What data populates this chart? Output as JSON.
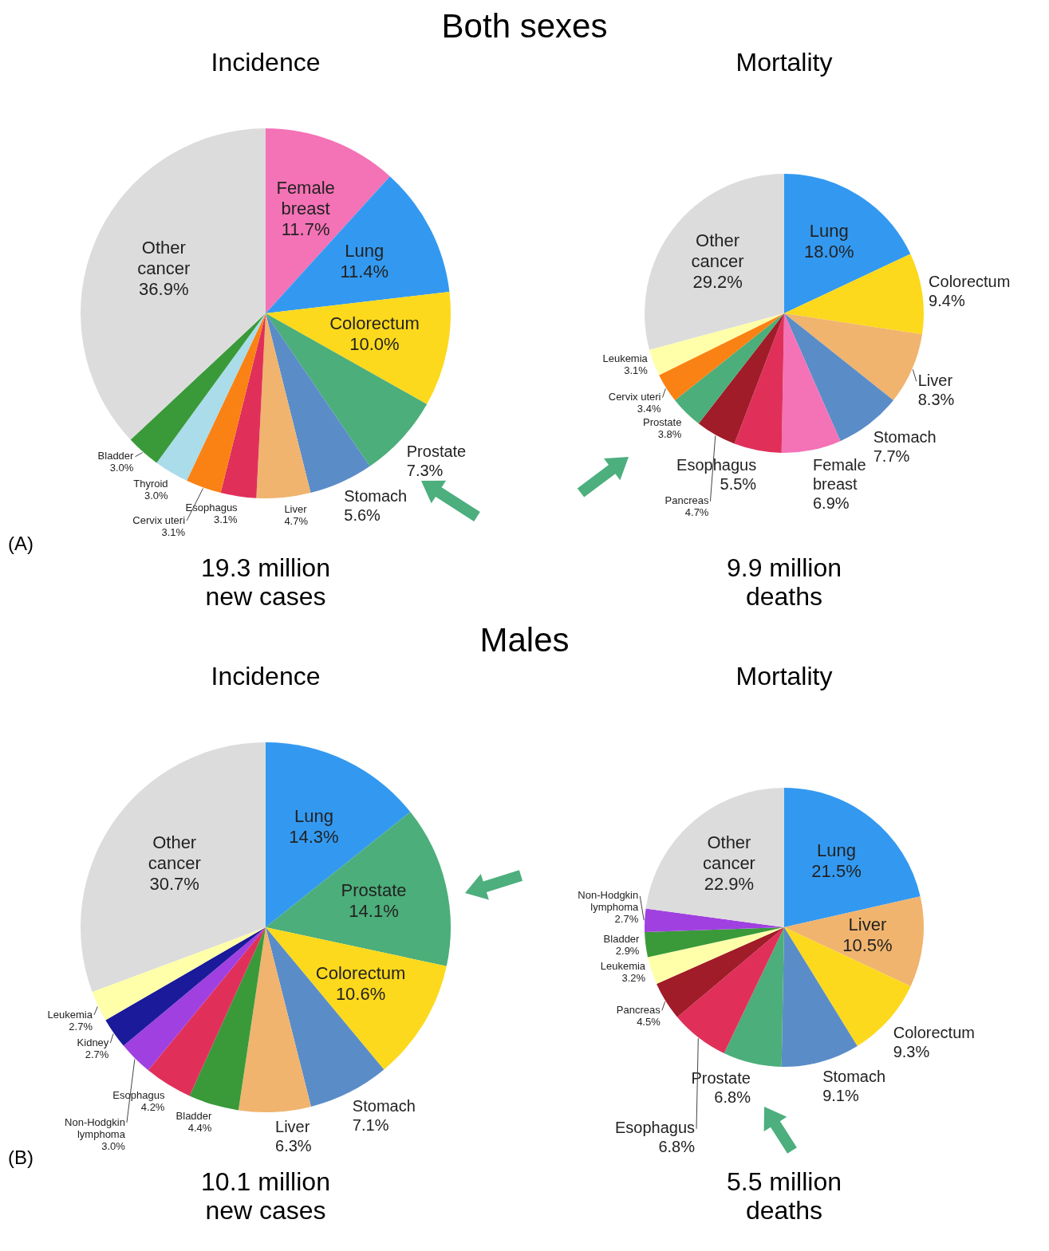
{
  "chart_data": [
    {
      "type": "pie",
      "title": "Incidence",
      "subtitle": "19.3 million new cases",
      "annotations": [
        "Both sexes",
        "(A)"
      ],
      "categories": [
        "Female breast",
        "Lung",
        "Colorectum",
        "Prostate",
        "Stomach",
        "Liver",
        "Esophagus",
        "Cervix uteri",
        "Thyroid",
        "Bladder",
        "Other cancer"
      ],
      "values": [
        11.7,
        11.4,
        10.0,
        7.3,
        5.6,
        4.7,
        3.1,
        3.1,
        3.0,
        3.0,
        36.9
      ],
      "value_labels": [
        "11.7%",
        "11.4%",
        "10.0%",
        "7.3%",
        "5.6%",
        "4.7%",
        "3.1%",
        "3.1%",
        "3.0%",
        "3.0%",
        "36.9%"
      ],
      "colors": [
        "#f472b6",
        "#3399f0",
        "#fcd91c",
        "#4cae7a",
        "#5a8cc8",
        "#f0b46e",
        "#e0305a",
        "#fa8214",
        "#aadcea",
        "#3a9a3a",
        "#dcdcdc"
      ]
    },
    {
      "type": "pie",
      "title": "Mortality",
      "subtitle": "9.9 million deaths",
      "categories": [
        "Lung",
        "Colorectum",
        "Liver",
        "Stomach",
        "Female breast",
        "Esophagus",
        "Pancreas",
        "Prostate",
        "Cervix uteri",
        "Leukemia",
        "Other cancer"
      ],
      "values": [
        18.0,
        9.4,
        8.3,
        7.7,
        6.9,
        5.5,
        4.7,
        3.8,
        3.4,
        3.1,
        29.2
      ],
      "value_labels": [
        "18.0%",
        "9.4%",
        "8.3%",
        "7.7%",
        "6.9%",
        "5.5%",
        "4.7%",
        "3.8%",
        "3.4%",
        "3.1%",
        "29.2%"
      ],
      "colors": [
        "#3399f0",
        "#fcd91c",
        "#f0b46e",
        "#5a8cc8",
        "#f472b6",
        "#e0305a",
        "#a01c28",
        "#4cae7a",
        "#fa8214",
        "#ffffaa",
        "#dcdcdc"
      ]
    },
    {
      "type": "pie",
      "title": "Incidence",
      "subtitle": "10.1 million new cases",
      "annotations": [
        "Males",
        "(B)"
      ],
      "categories": [
        "Lung",
        "Prostate",
        "Colorectum",
        "Stomach",
        "Liver",
        "Bladder",
        "Esophagus",
        "Non-Hodgkin lymphoma",
        "Kidney",
        "Leukemia",
        "Other cancer"
      ],
      "values": [
        14.3,
        14.1,
        10.6,
        7.1,
        6.3,
        4.4,
        4.2,
        3.0,
        2.7,
        2.7,
        30.7
      ],
      "value_labels": [
        "14.3%",
        "14.1%",
        "10.6%",
        "7.1%",
        "6.3%",
        "4.4%",
        "4.2%",
        "3.0%",
        "2.7%",
        "2.7%",
        "30.7%"
      ],
      "colors": [
        "#3399f0",
        "#4cae7a",
        "#fcd91c",
        "#5a8cc8",
        "#f0b46e",
        "#3a9a3a",
        "#e0305a",
        "#a040e0",
        "#1a1a9a",
        "#ffffaa",
        "#dcdcdc"
      ]
    },
    {
      "type": "pie",
      "title": "Mortality",
      "subtitle": "5.5 million deaths",
      "categories": [
        "Lung",
        "Liver",
        "Colorectum",
        "Stomach",
        "Prostate",
        "Esophagus",
        "Pancreas",
        "Leukemia",
        "Bladder",
        "Non-Hodgkin lymphoma",
        "Other cancer"
      ],
      "values": [
        21.5,
        10.5,
        9.3,
        9.1,
        6.8,
        6.8,
        4.5,
        3.2,
        2.9,
        2.7,
        22.9
      ],
      "value_labels": [
        "21.5%",
        "10.5%",
        "9.3%",
        "9.1%",
        "6.8%",
        "6.8%",
        "4.5%",
        "3.2%",
        "2.9%",
        "2.7%",
        "22.9%"
      ],
      "colors": [
        "#3399f0",
        "#f0b46e",
        "#fcd91c",
        "#5a8cc8",
        "#4cae7a",
        "#e0305a",
        "#a01c28",
        "#ffffaa",
        "#3a9a3a",
        "#a040e0",
        "#dcdcdc"
      ]
    }
  ]
}
